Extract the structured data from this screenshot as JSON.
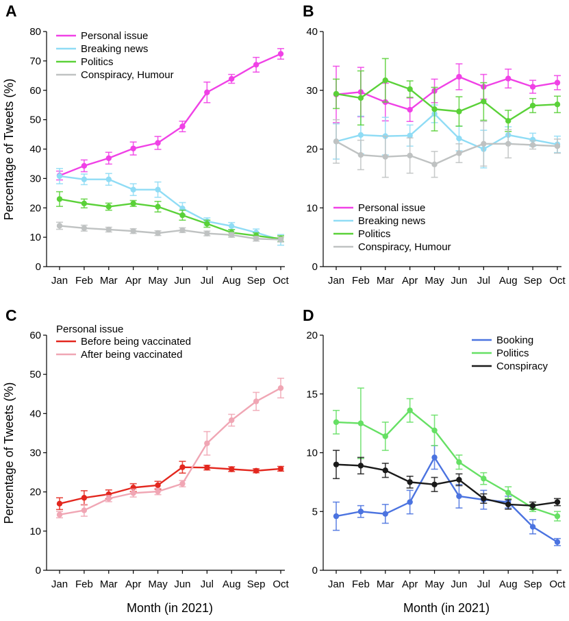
{
  "ylabel": "Percentage of Tweets (%)",
  "xlabel": "Month (in 2021)",
  "chart_data": [
    {
      "id": "A",
      "letter": "A",
      "type": "line",
      "categories": [
        "Jan",
        "Feb",
        "Mar",
        "Apr",
        "May",
        "Jun",
        "Jul",
        "Aug",
        "Sep",
        "Oct"
      ],
      "ylim": [
        0,
        80
      ],
      "yticks": [
        0,
        10,
        20,
        30,
        40,
        50,
        60,
        70,
        80
      ],
      "legend_title": "",
      "series": [
        {
          "name": "Personal issue",
          "color": "#f041e6",
          "values": [
            31,
            34.3,
            36.9,
            40.2,
            42.1,
            47.7,
            59.3,
            63.9,
            68.7,
            72.4
          ],
          "errors": [
            1.5,
            2,
            2,
            2.2,
            2.2,
            1.8,
            3.5,
            1.5,
            2.5,
            1.8
          ]
        },
        {
          "name": "Breaking news",
          "color": "#8fdcf5",
          "values": [
            30.8,
            29.7,
            29.7,
            26.2,
            26.2,
            19.8,
            15.4,
            13.8,
            11.6,
            9.1
          ],
          "errors": [
            2.6,
            1.8,
            2,
            2,
            2.6,
            2,
            1.2,
            1.2,
            1.2,
            1.8
          ]
        },
        {
          "name": "Politics",
          "color": "#5ad138",
          "values": [
            23,
            21.5,
            20.4,
            21.5,
            20.4,
            17.5,
            14.6,
            11.6,
            10.5,
            9.5
          ],
          "errors": [
            2.5,
            1.5,
            1.2,
            1,
            1.8,
            1.7,
            1.2,
            1,
            1,
            1
          ]
        },
        {
          "name": "Conspiracy, Humour",
          "color": "#bfc2c2",
          "values": [
            13.9,
            13.1,
            12.6,
            12.1,
            11.4,
            12.4,
            11.3,
            10.8,
            9.5,
            9.2
          ],
          "errors": [
            1.2,
            1,
            0.8,
            0.8,
            0.8,
            0.8,
            0.8,
            0.8,
            0.8,
            0.8
          ]
        }
      ]
    },
    {
      "id": "B",
      "letter": "B",
      "type": "line",
      "categories": [
        "Jan",
        "Feb",
        "Mar",
        "Apr",
        "May",
        "Jun",
        "Jul",
        "Aug",
        "Sep",
        "Oct"
      ],
      "ylim": [
        0,
        40
      ],
      "yticks": [
        0,
        10,
        20,
        30,
        40
      ],
      "legend_title": "",
      "series": [
        {
          "name": "Personal issue",
          "color": "#f041e6",
          "values": [
            29.3,
            29.7,
            28,
            26.7,
            29.9,
            32.3,
            30.6,
            32,
            30.6,
            31.3
          ],
          "errors": [
            4.8,
            4.2,
            3.2,
            2,
            2,
            2.2,
            2.1,
            1.6,
            1.1,
            1.2
          ]
        },
        {
          "name": "Breaking news",
          "color": "#8fdcf5",
          "values": [
            21.3,
            22.4,
            22.2,
            22.3,
            26,
            21.8,
            20,
            22.4,
            21.6,
            20.8
          ],
          "errors": [
            3,
            3.2,
            3.2,
            1.8,
            1.5,
            2.1,
            3.2,
            1.4,
            1.1,
            1.4
          ]
        },
        {
          "name": "Politics",
          "color": "#5ad138",
          "values": [
            29.4,
            28.7,
            31.7,
            30.2,
            26.8,
            26.4,
            28.1,
            24.8,
            27.4,
            27.6
          ],
          "errors": [
            2.5,
            4.6,
            3.7,
            1.4,
            3.7,
            2.5,
            3.2,
            1.8,
            1.2,
            1.4
          ]
        },
        {
          "name": "Conspiracy, Humour",
          "color": "#bfc2c2",
          "values": [
            21.3,
            19,
            18.7,
            18.9,
            17.4,
            19.3,
            20.9,
            20.9,
            20.7,
            20.5
          ],
          "errors": [
            3.7,
            2.5,
            3.5,
            3,
            2.2,
            1.6,
            3.8,
            2.4,
            0.7,
            1.2
          ]
        }
      ]
    },
    {
      "id": "C",
      "letter": "C",
      "type": "line",
      "categories": [
        "Jan",
        "Feb",
        "Mar",
        "Apr",
        "May",
        "Jun",
        "Jul",
        "Aug",
        "Sep",
        "Oct"
      ],
      "ylim": [
        0,
        60
      ],
      "yticks": [
        0,
        10,
        20,
        30,
        40,
        50,
        60
      ],
      "legend_title": "Personal issue",
      "series": [
        {
          "name": "Before being vaccinated",
          "color": "#e3271e",
          "values": [
            17,
            18.5,
            19.4,
            21.1,
            21.7,
            26.3,
            26.2,
            25.8,
            25.4,
            25.9
          ],
          "errors": [
            1.5,
            1.8,
            1.1,
            1,
            1,
            1.5,
            0.6,
            0.6,
            0.5,
            0.6
          ]
        },
        {
          "name": "After being vaccinated",
          "color": "#f0a6b4",
          "values": [
            14.2,
            15.3,
            18.3,
            19.7,
            20.1,
            22.1,
            32.4,
            38.3,
            43.1,
            46.5
          ],
          "errors": [
            0.8,
            1.5,
            0.8,
            1,
            0.8,
            0.8,
            3,
            1.5,
            2.3,
            2.5
          ]
        }
      ]
    },
    {
      "id": "D",
      "letter": "D",
      "type": "line",
      "categories": [
        "Jan",
        "Feb",
        "Mar",
        "Apr",
        "May",
        "Jun",
        "Jul",
        "Aug",
        "Sep",
        "Oct"
      ],
      "ylim": [
        0,
        20
      ],
      "yticks": [
        0,
        5,
        10,
        15,
        20
      ],
      "legend_title": "",
      "series": [
        {
          "name": "Booking",
          "color": "#4b73e0",
          "values": [
            4.6,
            5,
            4.8,
            5.8,
            9.6,
            6.3,
            6,
            5.8,
            3.7,
            2.4
          ],
          "errors": [
            1.2,
            0.5,
            0.8,
            1,
            1,
            1,
            0.8,
            0.5,
            0.6,
            0.3
          ]
        },
        {
          "name": "Politics",
          "color": "#66e064",
          "values": [
            12.6,
            12.5,
            11.4,
            13.6,
            11.9,
            9.2,
            7.8,
            6.6,
            5.3,
            4.6
          ],
          "errors": [
            1,
            3,
            1.2,
            1,
            1.3,
            0.6,
            0.5,
            0.5,
            0.3,
            0.4
          ]
        },
        {
          "name": "Conspiracy",
          "color": "#1a1a1a",
          "values": [
            9,
            8.9,
            8.5,
            7.5,
            7.3,
            7.7,
            6.1,
            5.6,
            5.5,
            5.8
          ],
          "errors": [
            1.2,
            0.7,
            0.6,
            0.5,
            0.6,
            0.5,
            0.4,
            0.4,
            0.3,
            0.3
          ]
        }
      ]
    }
  ]
}
